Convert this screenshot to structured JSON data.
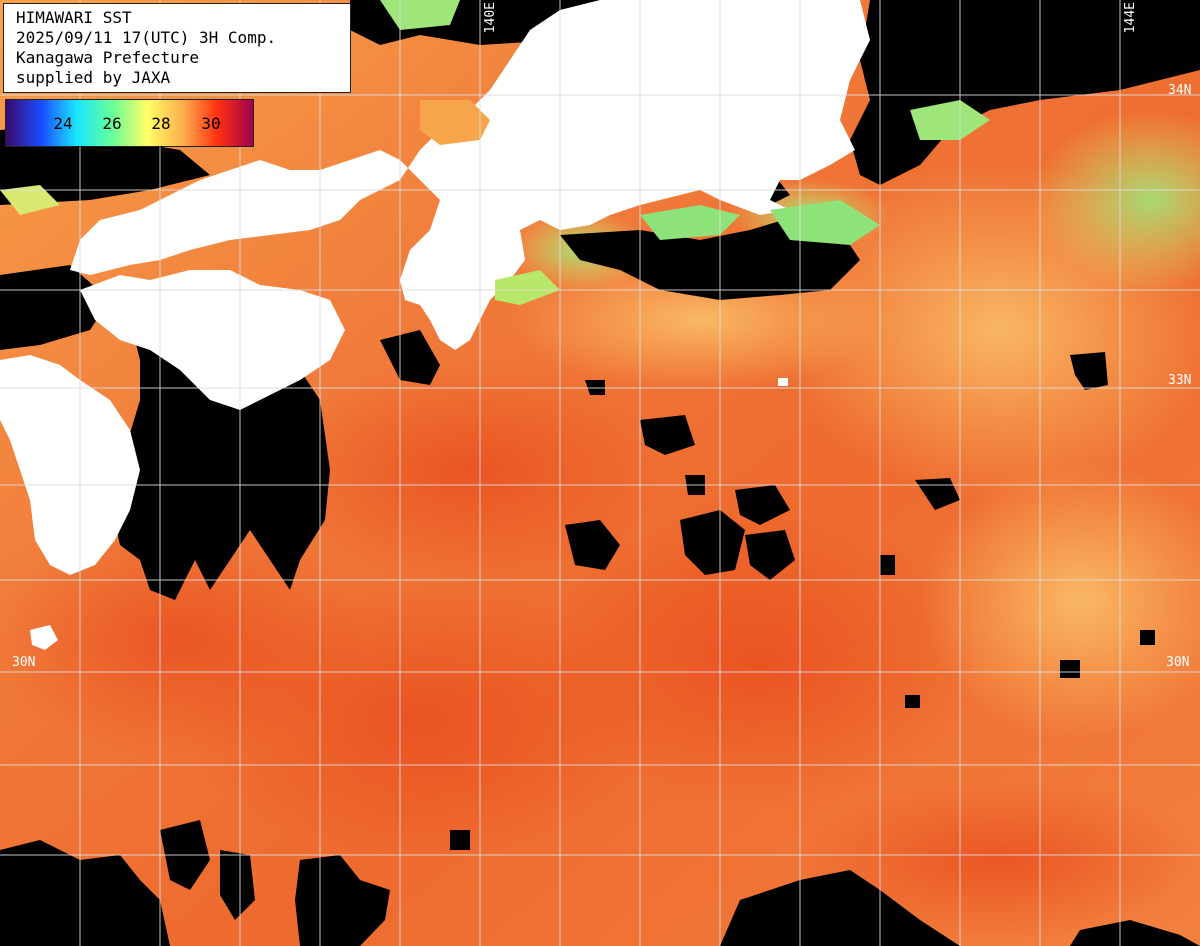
{
  "info": {
    "line1": "HIMAWARI SST",
    "line2": "2025/09/11 17(UTC) 3H Comp.",
    "line3": "Kanagawa Prefecture",
    "line4": "supplied by JAXA"
  },
  "legend": {
    "ticks": [
      "24",
      "26",
      "28",
      "30"
    ],
    "colors": [
      "#3a0a6e",
      "#1a4cff",
      "#19e6ff",
      "#66ff99",
      "#ffff66",
      "#ffb050",
      "#ff3010",
      "#a00050"
    ]
  },
  "grid": {
    "lon_labels": [
      "140E",
      "144E"
    ],
    "lat_labels": [
      "34N",
      "33N",
      "30N"
    ],
    "lat_labels_left": [
      "33N",
      "30N"
    ]
  },
  "colors": {
    "land": "#ffffff",
    "no_data": "#000000",
    "sst_warm": "#f47a3c",
    "sst_hot": "#e84a1e",
    "sst_light": "#fbb35d",
    "sst_cool": "#b8e86a",
    "grid": "#dcdcdc"
  }
}
